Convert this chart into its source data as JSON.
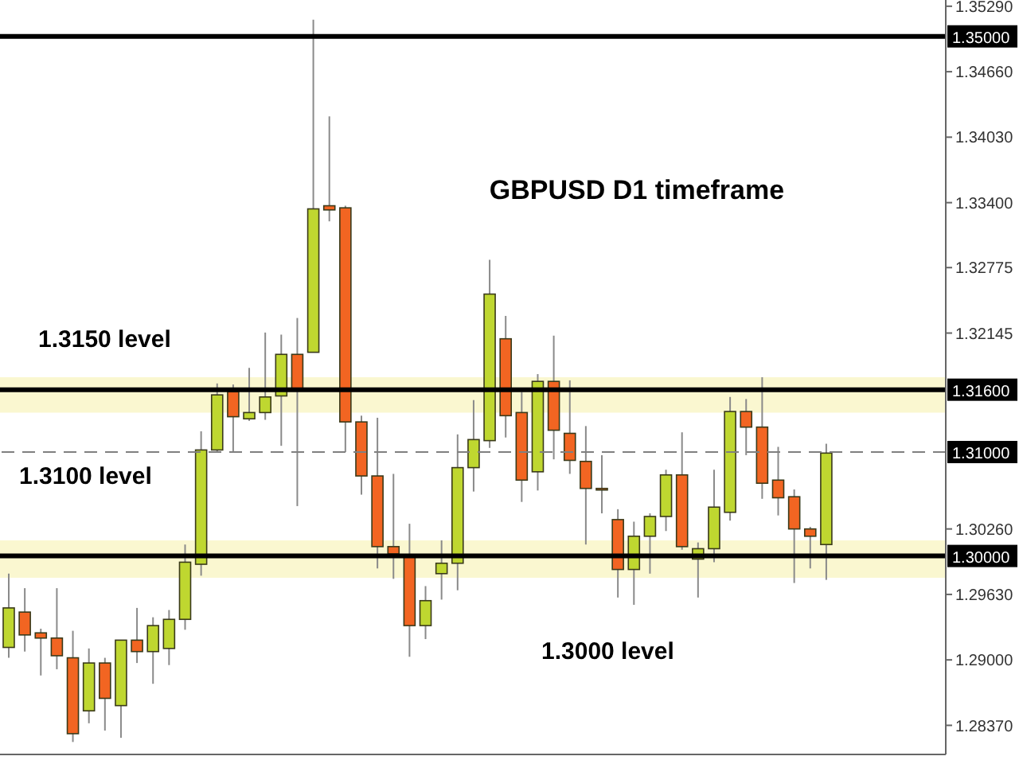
{
  "chart_data": {
    "type": "candlestick",
    "title": "GBPUSD D1 timeframe",
    "annotations": [
      "1.3150 level",
      "1.3100 level",
      "1.3000 level"
    ],
    "categories": [
      null,
      null,
      null,
      null,
      null,
      null,
      null,
      null,
      null,
      null,
      null,
      null,
      null,
      null,
      null,
      null,
      null,
      null,
      null,
      null,
      null,
      null,
      null,
      null,
      null,
      null,
      null,
      null,
      null,
      null,
      null,
      null,
      null,
      null,
      null,
      null,
      null,
      null,
      null,
      null,
      null,
      null,
      null,
      null,
      null,
      null,
      null,
      null,
      null,
      null,
      null,
      null,
      null,
      null,
      null,
      null,
      null,
      null,
      null
    ],
    "ohlc": [
      [
        1.2912,
        1.2983,
        1.2902,
        1.295
      ],
      [
        1.2946,
        1.2969,
        1.2908,
        1.2924
      ],
      [
        1.2926,
        1.293,
        1.2885,
        1.2921
      ],
      [
        1.2921,
        1.2969,
        1.2891,
        1.2904
      ],
      [
        1.2902,
        1.2928,
        1.2821,
        1.2829
      ],
      [
        1.2851,
        1.2911,
        1.2839,
        1.2897
      ],
      [
        1.2897,
        1.2902,
        1.2832,
        1.2863
      ],
      [
        1.2856,
        1.2919,
        1.2825,
        1.2919
      ],
      [
        1.2919,
        1.295,
        1.2897,
        1.2908
      ],
      [
        1.2908,
        1.2941,
        1.2877,
        1.2933
      ],
      [
        1.2911,
        1.2948,
        1.2895,
        1.2939
      ],
      [
        1.2939,
        1.3011,
        1.2929,
        1.2994
      ],
      [
        1.2992,
        1.312,
        1.2981,
        1.3102
      ],
      [
        1.3102,
        1.3166,
        1.31,
        1.3155
      ],
      [
        1.3158,
        1.3165,
        1.31,
        1.3134
      ],
      [
        1.3132,
        1.3181,
        1.313,
        1.3138
      ],
      [
        1.3138,
        1.3215,
        1.3131,
        1.3153
      ],
      [
        1.3154,
        1.3213,
        1.3106,
        1.3194
      ],
      [
        1.3194,
        1.3229,
        1.3048,
        1.3161
      ],
      [
        1.3196,
        1.3516,
        1.3196,
        1.3334
      ],
      [
        1.3337,
        1.3423,
        1.3322,
        1.3333
      ],
      [
        1.3335,
        1.3337,
        1.31,
        1.3129
      ],
      [
        1.3129,
        1.3135,
        1.3059,
        1.3077
      ],
      [
        1.3077,
        1.3133,
        1.2988,
        1.3009
      ],
      [
        1.3009,
        1.3079,
        1.2978,
        1.3002
      ],
      [
        1.3001,
        1.3031,
        1.2903,
        1.2933
      ],
      [
        1.2933,
        1.2971,
        1.292,
        1.2957
      ],
      [
        1.2983,
        1.3015,
        1.2958,
        1.2993
      ],
      [
        1.2993,
        1.3117,
        1.2967,
        1.3085
      ],
      [
        1.3085,
        1.315,
        1.3062,
        1.3112
      ],
      [
        1.3111,
        1.3285,
        1.3104,
        1.3252
      ],
      [
        1.3209,
        1.3231,
        1.3114,
        1.3135
      ],
      [
        1.3138,
        1.3158,
        1.3052,
        1.3073
      ],
      [
        1.3081,
        1.3175,
        1.3063,
        1.3168
      ],
      [
        1.3168,
        1.3212,
        1.3093,
        1.3121
      ],
      [
        1.3118,
        1.3169,
        1.3079,
        1.3092
      ],
      [
        1.3091,
        1.3125,
        1.3011,
        1.3065
      ],
      [
        1.3065,
        1.3097,
        1.3041,
        1.3064
      ],
      [
        1.3035,
        1.3045,
        1.296,
        1.2987
      ],
      [
        1.2987,
        1.3033,
        1.2953,
        1.3019
      ],
      [
        1.3019,
        1.3041,
        1.2983,
        1.3038
      ],
      [
        1.3038,
        1.3083,
        1.3024,
        1.3078
      ],
      [
        1.3078,
        1.3119,
        1.3006,
        1.3009
      ],
      [
        1.2997,
        1.3013,
        1.296,
        1.3007
      ],
      [
        1.3007,
        1.3083,
        1.2994,
        1.3047
      ],
      [
        1.3042,
        1.3153,
        1.3034,
        1.3139
      ],
      [
        1.3139,
        1.3151,
        1.3097,
        1.3124
      ],
      [
        1.3124,
        1.3172,
        1.3055,
        1.307
      ],
      [
        1.3073,
        1.3105,
        1.3039,
        1.3056
      ],
      [
        1.3057,
        1.3064,
        1.2974,
        1.3026
      ],
      [
        1.3026,
        1.3028,
        1.2988,
        1.3019
      ],
      [
        1.3011,
        1.3108,
        1.2977,
        1.3099
      ],
      null,
      null,
      null,
      null,
      null,
      null,
      null
    ],
    "colors": [
      "#bfd730",
      "#f26522",
      "#f26522",
      "#f26522",
      "#f26522",
      "#bfd730",
      "#f26522",
      "#bfd730",
      "#f26522",
      "#bfd730",
      "#bfd730",
      "#bfd730",
      "#bfd730",
      "#bfd730",
      "#f26522",
      "#bfd730",
      "#bfd730",
      "#bfd730",
      "#f26522",
      "#bfd730",
      "#f26522",
      "#f26522",
      "#f26522",
      "#f26522",
      "#f26522",
      "#f26522",
      "#bfd730",
      "#bfd730",
      "#bfd730",
      "#bfd730",
      "#bfd730",
      "#f26522",
      "#f26522",
      "#bfd730",
      "#f26522",
      "#f26522",
      "#f26522",
      "#f26522",
      "#f26522",
      "#bfd730",
      "#bfd730",
      "#bfd730",
      "#f26522",
      "#bfd730",
      "#bfd730",
      "#bfd730",
      "#f26522",
      "#f26522",
      "#f26522",
      "#f26522",
      "#f26522",
      "#bfd730",
      null,
      null,
      null,
      null,
      null,
      null,
      null
    ],
    "ylim": [
      1.2809,
      1.3535
    ],
    "yticks": [
      {
        "value": 1.2837,
        "label": "1.28370"
      },
      {
        "value": 1.29,
        "label": "1.29000"
      },
      {
        "value": 1.2963,
        "label": "1.29630"
      },
      {
        "value": 1.3026,
        "label": "1.30260"
      },
      {
        "value": 1.32145,
        "label": "1.32145"
      },
      {
        "value": 1.32775,
        "label": "1.32775"
      },
      {
        "value": 1.334,
        "label": "1.33400"
      },
      {
        "value": 1.3403,
        "label": "1.34030"
      },
      {
        "value": 1.3466,
        "label": "1.34660"
      },
      {
        "value": 1.3529,
        "label": "1.35290"
      }
    ],
    "ref_lines": [
      {
        "axis": "y",
        "value": 1.35,
        "label": "1.35000",
        "color": "#000000",
        "line_style": "solid"
      },
      {
        "axis": "y",
        "value": 1.316,
        "label": "1.31600",
        "color": "#000000",
        "line_style": "solid"
      },
      {
        "axis": "y",
        "value": 1.31,
        "label": "1.31000",
        "color": "#808080",
        "line_style": "dashed"
      },
      {
        "axis": "y",
        "value": 1.3,
        "label": "1.30000",
        "color": "#000000",
        "line_style": "solid"
      }
    ],
    "bands": [
      {
        "axis": "y",
        "from": 1.3138,
        "to": 1.3172,
        "color": "#faf7d0"
      },
      {
        "axis": "y",
        "from": 1.2979,
        "to": 1.3015,
        "color": "#faf7d0"
      }
    ],
    "tick_labels": "y"
  }
}
